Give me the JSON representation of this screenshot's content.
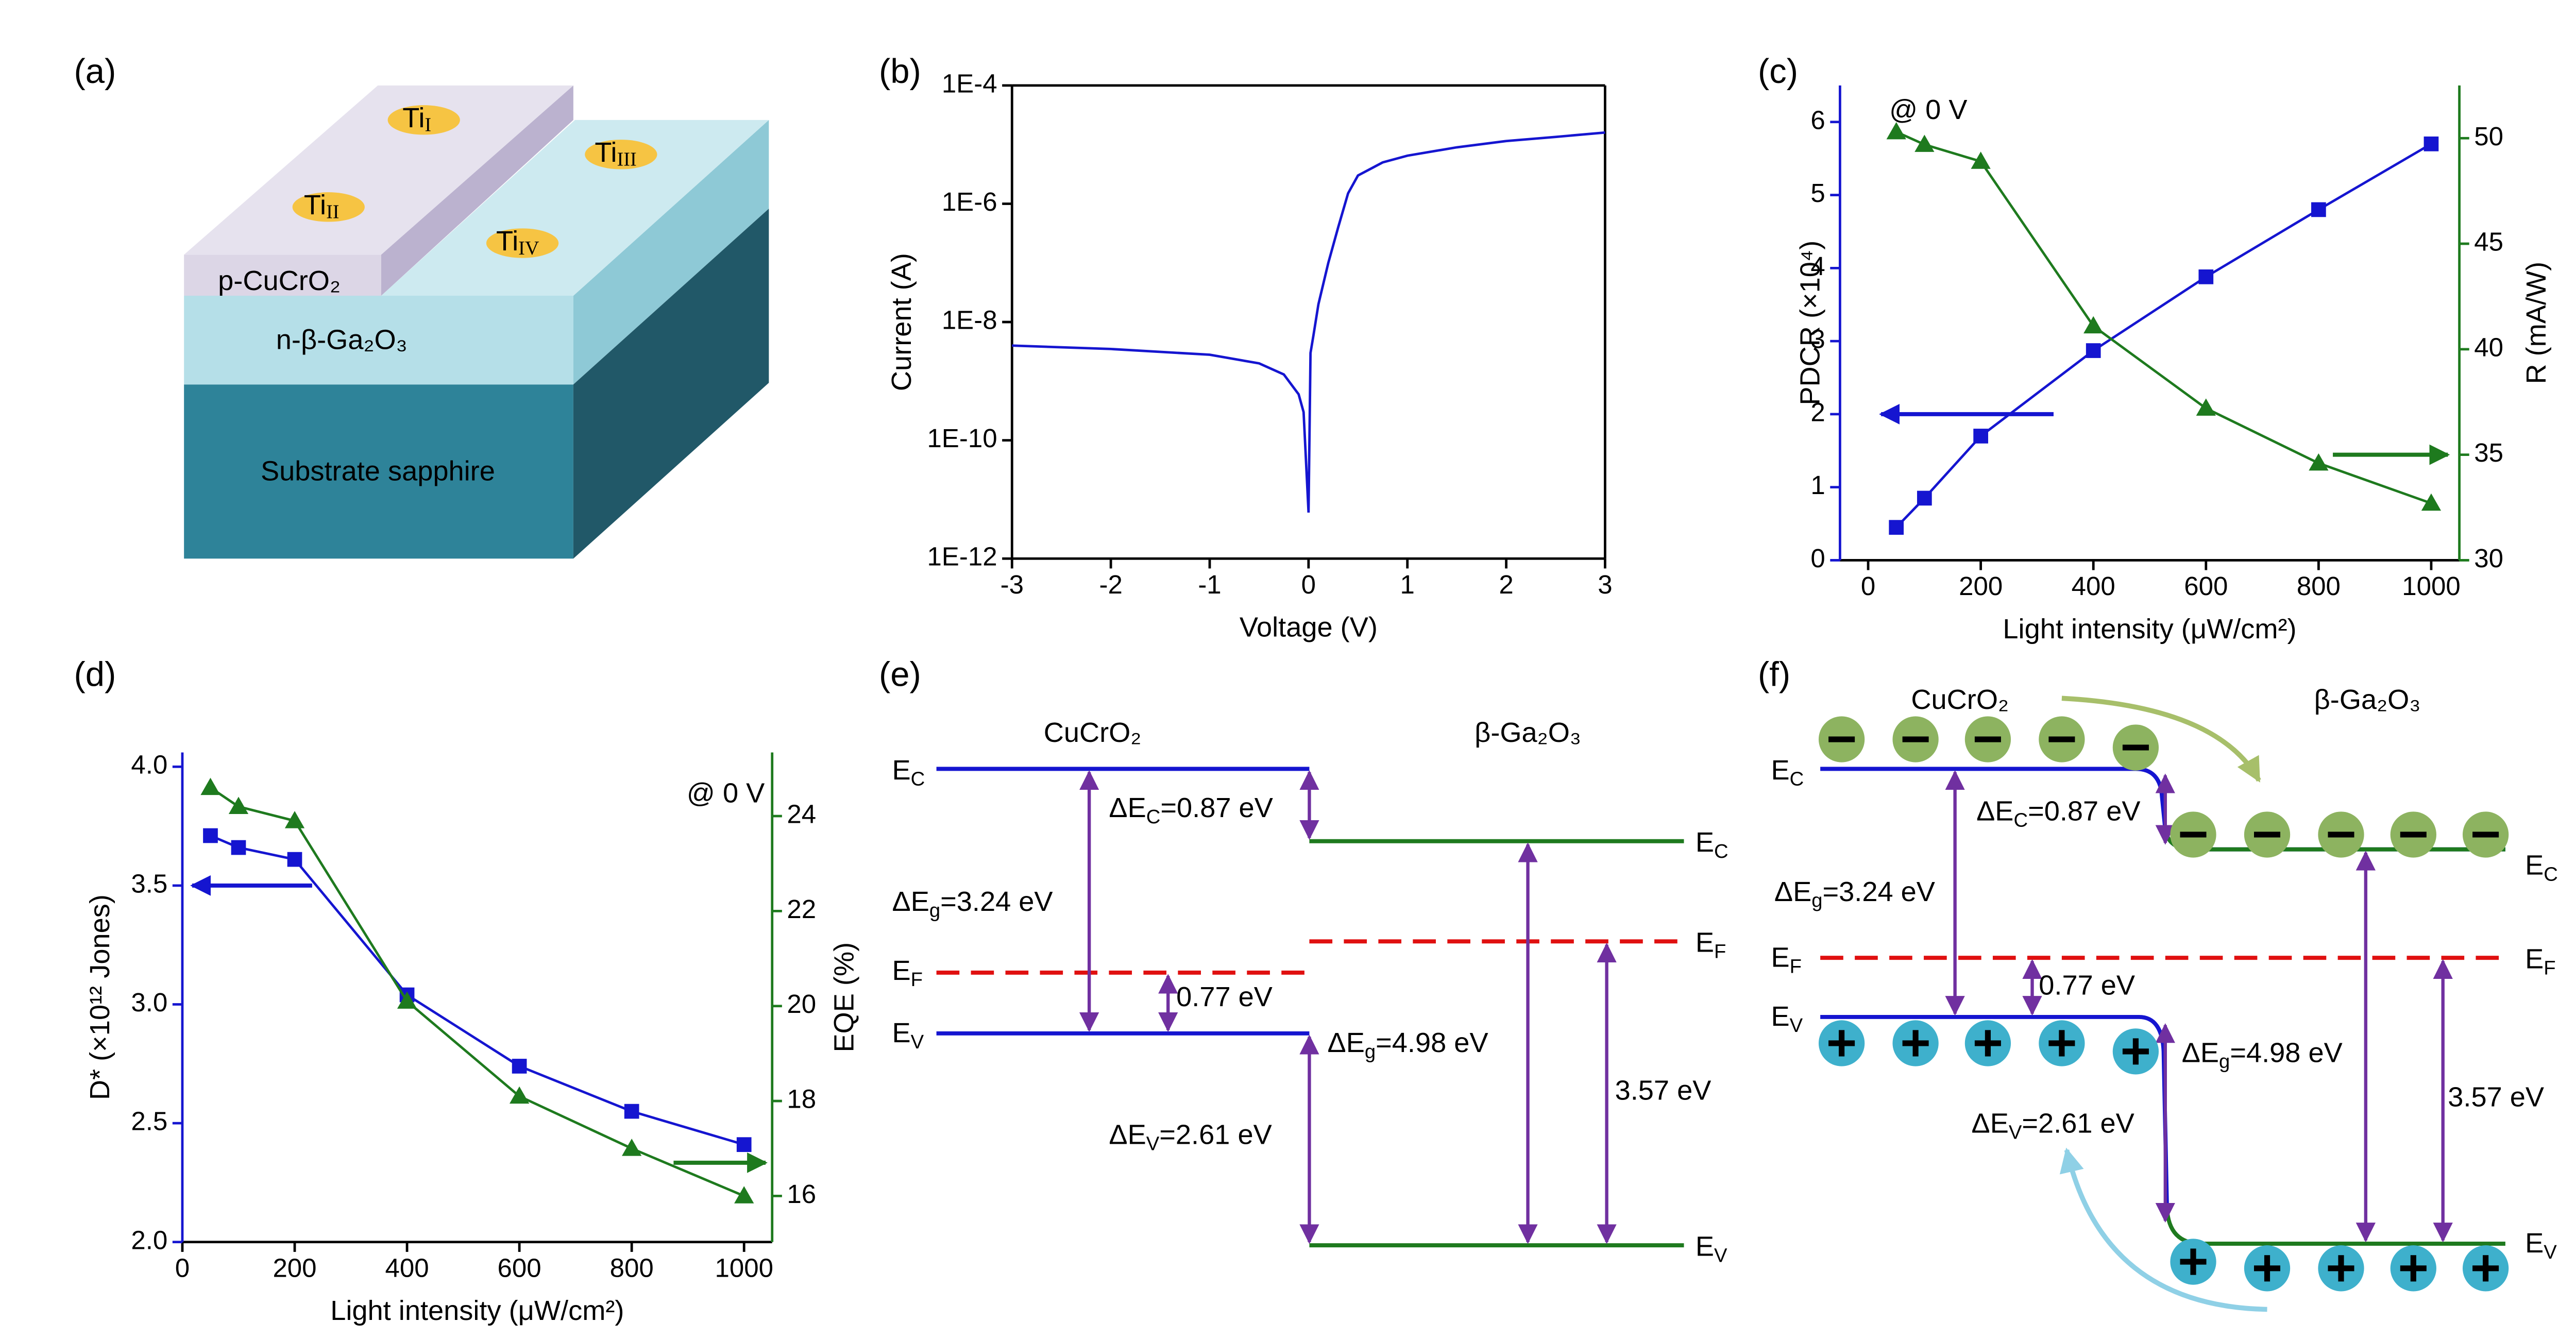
{
  "chart_data": [
    {
      "type": "line",
      "label": "(b)",
      "xlabel": "Voltage (V)",
      "ylabel": "Current (A)",
      "log_y": true,
      "box": true,
      "x": [
        -3,
        -2,
        -1,
        -0.5,
        -0.25,
        -0.1,
        -0.05,
        0,
        0.02,
        0.05,
        0.1,
        0.2,
        0.3,
        0.4,
        0.5,
        0.75,
        1,
        1.5,
        2,
        2.5,
        3
      ],
      "series": [
        {
          "color": "#1515d0",
          "values": [
            4e-09,
            3.5e-09,
            2.8e-09,
            2e-09,
            1.3e-09,
            6e-10,
            3e-10,
            6e-12,
            3e-09,
            6e-09,
            2e-08,
            1e-07,
            4e-07,
            1.5e-06,
            3e-06,
            5e-06,
            6.5e-06,
            9e-06,
            1.15e-05,
            1.35e-05,
            1.6e-05
          ]
        }
      ],
      "xlim": [
        -3,
        3
      ],
      "xticks": [
        -3,
        -2,
        -1,
        0,
        1,
        2,
        3
      ],
      "ylim": [
        1e-12,
        0.0001
      ],
      "yticks": [
        {
          "value": 1e-12,
          "label": "1E-12"
        },
        {
          "value": 1e-10,
          "label": "1E-10"
        },
        {
          "value": 1e-08,
          "label": "1E-8"
        },
        {
          "value": 1e-06,
          "label": "1E-6"
        },
        {
          "value": 0.0001,
          "label": "1E-4"
        }
      ]
    },
    {
      "type": "line",
      "label": "(c)",
      "annotation": "@ 0 V",
      "xlabel": "Light intensity (μW/cm²)",
      "ylabel": "PDCR (×10⁴)",
      "y2label": "R (mA/W)",
      "x": [
        50,
        100,
        200,
        400,
        600,
        800,
        1000
      ],
      "series": [
        {
          "color": "#1515d0",
          "marker": "square",
          "values": [
            0.45,
            0.85,
            1.7,
            2.87,
            3.88,
            4.8,
            5.7
          ]
        },
        {
          "color": "#1e7a1e",
          "marker": "triangle",
          "axis": "y2",
          "values": [
            50.3,
            49.7,
            48.9,
            41.1,
            37.2,
            34.6,
            32.7
          ]
        }
      ],
      "xlim": [
        -50,
        1050
      ],
      "xticks": [
        0,
        200,
        400,
        600,
        800,
        1000
      ],
      "ylim": [
        0,
        6.5
      ],
      "yticks": [
        0,
        1,
        2,
        3,
        4,
        5,
        6
      ],
      "y2lim": [
        30,
        52.5
      ],
      "y2ticks": [
        30,
        35,
        40,
        45,
        50
      ]
    },
    {
      "type": "line",
      "label": "(d)",
      "annotation": "@ 0 V",
      "xlabel": "Light intensity (μW/cm²)",
      "ylabel": "D* (×10¹² Jones)",
      "y2label": "EQE (%)",
      "x": [
        50,
        100,
        200,
        400,
        600,
        800,
        1000
      ],
      "series": [
        {
          "color": "#1515d0",
          "marker": "square",
          "values": [
            3.71,
            3.66,
            3.61,
            3.04,
            2.74,
            2.55,
            2.41
          ]
        },
        {
          "color": "#1e7a1e",
          "marker": "triangle",
          "axis": "y2",
          "values": [
            24.6,
            24.2,
            23.9,
            20.1,
            18.1,
            17.0,
            16.0
          ]
        }
      ],
      "xlim": [
        0,
        1050
      ],
      "xticks": [
        0,
        200,
        400,
        600,
        800,
        1000
      ],
      "ylim": [
        2,
        4.06
      ],
      "yticks": [
        {
          "value": 2,
          "label": "2.0"
        },
        2.5,
        {
          "value": 3,
          "label": "3.0"
        },
        3.5,
        {
          "value": 4,
          "label": "4.0"
        }
      ],
      "y2lim": [
        15.03,
        25.34
      ],
      "y2ticks": [
        16,
        18,
        20,
        22,
        24
      ]
    }
  ],
  "diagrams": {
    "a": {
      "label": "(a)",
      "pads": [
        [
          "Ti",
          "I"
        ],
        [
          "Ti",
          "II"
        ],
        [
          "Ti",
          "III"
        ],
        [
          "Ti",
          "IV"
        ]
      ],
      "layers": [
        "p-CuCrO₂",
        "n-β-Ga₂O₃",
        "Substrate sapphire"
      ]
    },
    "e": {
      "label": "(e)",
      "materials": [
        "CuCrO₂",
        "β-Ga₂O₃"
      ],
      "levels": [
        [
          "E",
          "C"
        ],
        [
          "E",
          "F"
        ],
        [
          "E",
          "V"
        ],
        [
          "E",
          "C"
        ],
        [
          "E",
          "F"
        ],
        [
          "E",
          "V"
        ]
      ],
      "gaps": [
        [
          "ΔE",
          "C",
          "=0.87 eV"
        ],
        [
          "ΔE",
          "g",
          "=3.24 eV"
        ],
        [
          "0.77 eV"
        ],
        [
          "ΔE",
          "g",
          "=4.98 eV"
        ],
        [
          "3.57 eV"
        ],
        [
          "ΔE",
          "V",
          "=2.61 eV"
        ]
      ]
    },
    "f": {
      "label": "(f)",
      "materials": [
        "CuCrO₂",
        "β-Ga₂O₃"
      ],
      "levels": [
        [
          "E",
          "C"
        ],
        [
          "E",
          "F"
        ],
        [
          "E",
          "V"
        ],
        [
          "E",
          "C"
        ],
        [
          "E",
          "F"
        ],
        [
          "E",
          "V"
        ]
      ],
      "gaps": [
        [
          "ΔE",
          "C",
          "=0.87 eV"
        ],
        [
          "ΔE",
          "g",
          "=3.24 eV"
        ],
        [
          "0.77 eV"
        ],
        [
          "ΔE",
          "g",
          "=4.98 eV"
        ],
        [
          "3.57 eV"
        ],
        [
          "ΔE",
          "V",
          "=2.61 eV"
        ]
      ]
    }
  }
}
